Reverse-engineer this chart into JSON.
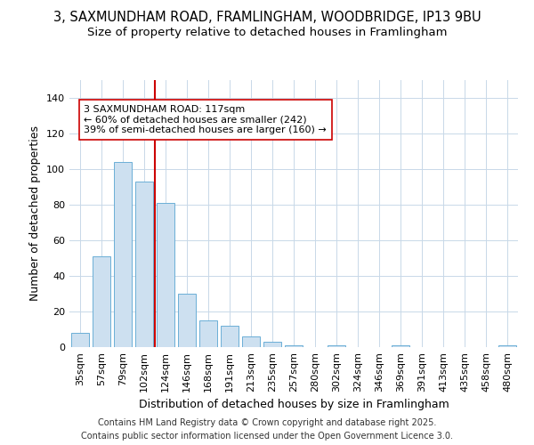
{
  "title1": "3, SAXMUNDHAM ROAD, FRAMLINGHAM, WOODBRIDGE, IP13 9BU",
  "title2": "Size of property relative to detached houses in Framlingham",
  "xlabel": "Distribution of detached houses by size in Framlingham",
  "ylabel": "Number of detached properties",
  "categories": [
    "35sqm",
    "57sqm",
    "79sqm",
    "102sqm",
    "124sqm",
    "146sqm",
    "168sqm",
    "191sqm",
    "213sqm",
    "235sqm",
    "257sqm",
    "280sqm",
    "302sqm",
    "324sqm",
    "346sqm",
    "369sqm",
    "391sqm",
    "413sqm",
    "435sqm",
    "458sqm",
    "480sqm"
  ],
  "values": [
    8,
    51,
    104,
    93,
    81,
    30,
    15,
    12,
    6,
    3,
    1,
    0,
    1,
    0,
    0,
    1,
    0,
    0,
    0,
    0,
    1
  ],
  "bar_color": "#cde0f0",
  "bar_edge_color": "#6baed6",
  "vline_x": 3.5,
  "vline_color": "#cc0000",
  "ann_line1": "3 SAXMUNDHAM ROAD: 117sqm",
  "ann_line2": "← 60% of detached houses are smaller (242)",
  "ann_line3": "39% of semi-detached houses are larger (160) →",
  "ylim_max": 150,
  "footer1": "Contains HM Land Registry data © Crown copyright and database right 2025.",
  "footer2": "Contains public sector information licensed under the Open Government Licence 3.0.",
  "bg_color": "#ffffff",
  "title1_fontsize": 10.5,
  "title2_fontsize": 9.5,
  "axis_label_fontsize": 9,
  "tick_fontsize": 8,
  "ann_fontsize": 8,
  "footer_fontsize": 7
}
